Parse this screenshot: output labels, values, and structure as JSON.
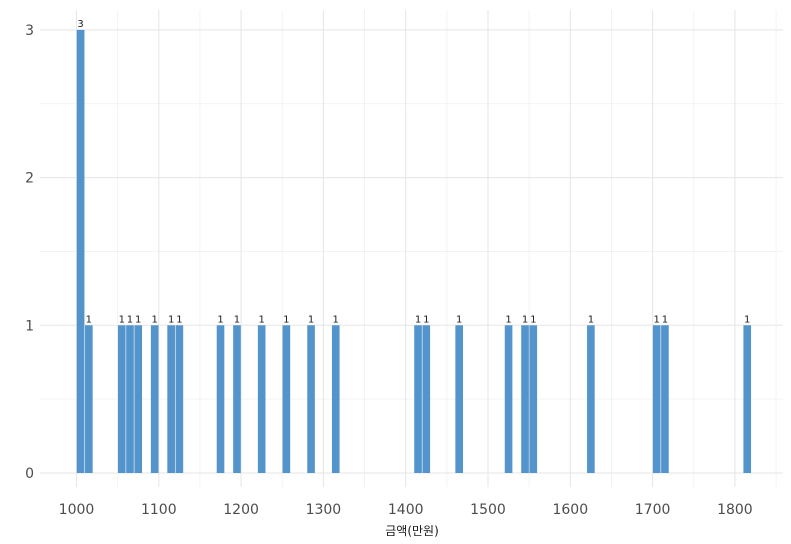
{
  "chart_data": {
    "type": "bar",
    "xlabel": "금액(만원)",
    "ylabel": "",
    "xlim": [
      1000,
      1850
    ],
    "ylim": [
      0,
      3
    ],
    "bar_width": 10,
    "x_ticks": [
      "1000",
      "1100",
      "1200",
      "1300",
      "1400",
      "1500",
      "1600",
      "1700",
      "1800"
    ],
    "y_ticks": [
      "0",
      "1",
      "2",
      "3"
    ],
    "grid": true,
    "bar_color": "#5294CB",
    "data": [
      {
        "x": 1005,
        "count": 3,
        "label": "3"
      },
      {
        "x": 1015,
        "count": 1,
        "label": "1"
      },
      {
        "x": 1055,
        "count": 1,
        "label": "1"
      },
      {
        "x": 1065,
        "count": 1,
        "label": "1"
      },
      {
        "x": 1075,
        "count": 1,
        "label": "1"
      },
      {
        "x": 1095,
        "count": 1,
        "label": "1"
      },
      {
        "x": 1115,
        "count": 1,
        "label": "1"
      },
      {
        "x": 1125,
        "count": 1,
        "label": "1"
      },
      {
        "x": 1175,
        "count": 1,
        "label": "1"
      },
      {
        "x": 1195,
        "count": 1,
        "label": "1"
      },
      {
        "x": 1225,
        "count": 1,
        "label": "1"
      },
      {
        "x": 1255,
        "count": 1,
        "label": "1"
      },
      {
        "x": 1285,
        "count": 1,
        "label": "1"
      },
      {
        "x": 1315,
        "count": 1,
        "label": "1"
      },
      {
        "x": 1415,
        "count": 1,
        "label": "1"
      },
      {
        "x": 1425,
        "count": 1,
        "label": "1"
      },
      {
        "x": 1465,
        "count": 1,
        "label": "1"
      },
      {
        "x": 1525,
        "count": 1,
        "label": "1"
      },
      {
        "x": 1545,
        "count": 1,
        "label": "1"
      },
      {
        "x": 1555,
        "count": 1,
        "label": "1"
      },
      {
        "x": 1625,
        "count": 1,
        "label": "1"
      },
      {
        "x": 1705,
        "count": 1,
        "label": "1"
      },
      {
        "x": 1715,
        "count": 1,
        "label": "1"
      },
      {
        "x": 1815,
        "count": 1,
        "label": "1"
      }
    ]
  }
}
